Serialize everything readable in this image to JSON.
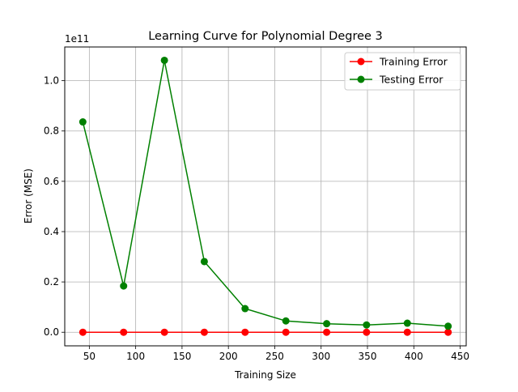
{
  "chart_data": {
    "type": "line",
    "title": "Learning Curve for Polynomial Degree 3",
    "xlabel": "Training Size",
    "ylabel": "Error (MSE)",
    "y_offset_label": "1e11",
    "y_scale_factor": 100000000000,
    "xlim": [
      23.5,
      456.5
    ],
    "ylim": [
      -0.054,
      1.134
    ],
    "xticks": [
      50,
      100,
      150,
      200,
      250,
      300,
      350,
      400,
      450
    ],
    "xtick_labels": [
      "50",
      "100",
      "150",
      "200",
      "250",
      "300",
      "350",
      "400",
      "450"
    ],
    "yticks": [
      0.0,
      0.2,
      0.4,
      0.6,
      0.8,
      1.0
    ],
    "ytick_labels": [
      "0.0",
      "0.2",
      "0.4",
      "0.6",
      "0.8",
      "1.0"
    ],
    "grid": true,
    "legend_position": "top-right",
    "x": [
      43,
      87,
      131,
      174,
      218,
      262,
      306,
      349,
      393,
      437
    ],
    "series": [
      {
        "name": "Training Error",
        "color": "#ff0000",
        "values": [
          0.0,
          0.0,
          0.0,
          0.0,
          0.0,
          0.0,
          0.0,
          0.0,
          0.0,
          0.0
        ]
      },
      {
        "name": "Testing Error",
        "color": "#008000",
        "values": [
          0.836,
          0.184,
          1.081,
          0.281,
          0.094,
          0.045,
          0.034,
          0.029,
          0.036,
          0.024
        ]
      }
    ]
  }
}
